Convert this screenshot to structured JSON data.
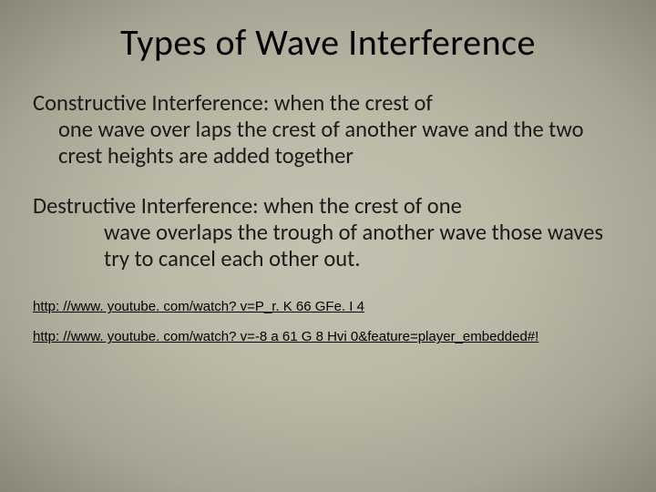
{
  "slide": {
    "title": "Types of Wave Interference",
    "para1_line1": "Constructive Interference:  when the crest of",
    "para1_cont": "one wave over laps the crest of another wave and the two crest heights are added together",
    "para2_line1": "Destructive Interference:  when the crest of one",
    "para2_cont": "wave overlaps the trough of another wave those waves try to cancel each other out.",
    "link1": "http: //www. youtube. com/watch? v=P_r. K 66 GFe. I 4",
    "link2": "http: //www. youtube. com/watch? v=-8 a 61 G 8 Hvi 0&feature=player_embedded#!"
  },
  "style": {
    "background_center": "#c5c1b0",
    "background_edge": "#8a8676",
    "title_fontsize": 40,
    "body_fontsize": 24.5,
    "link_fontsize": 15,
    "text_color": "#1a1a1a",
    "link_color": "#000000",
    "font_family": "Calibri"
  }
}
